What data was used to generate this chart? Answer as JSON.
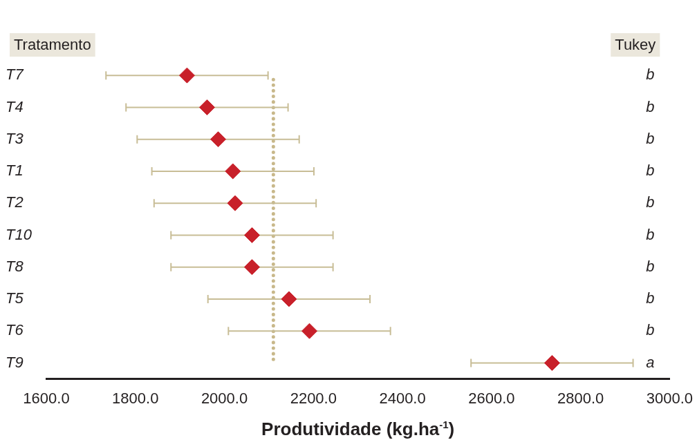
{
  "chart_data": {
    "type": "scatter",
    "orientation": "horizontal",
    "ylabel": "Tratamento",
    "y2label": "Tukey",
    "xlabel": "Produtividade (kg.ha$^{-1}$)",
    "categories": [
      "T7",
      "T4",
      "T3",
      "T1",
      "T2",
      "T10",
      "T8",
      "T5",
      "T6",
      "T9"
    ],
    "series": [
      {
        "color": "#c8202a",
        "values": [
          1916,
          1961,
          1986,
          2019,
          2024,
          2062,
          2062,
          2145,
          2191,
          2736
        ],
        "errors": [
          182,
          182,
          182,
          182,
          182,
          182,
          182,
          182,
          182,
          182
        ]
      }
    ],
    "marker": "diamond",
    "xlim": [
      1600,
      3000
    ],
    "xticks": [
      {
        "value": 1600,
        "label": "1600.0"
      },
      {
        "value": 1800,
        "label": "1800.0"
      },
      {
        "value": 2000,
        "label": "2000.0"
      },
      {
        "value": 2200,
        "label": "2200.0"
      },
      {
        "value": 2400,
        "label": "2400.0"
      },
      {
        "value": 2600,
        "label": "2600.0"
      },
      {
        "value": 2800,
        "label": "2800.0"
      },
      {
        "value": 3000,
        "label": "3000.0"
      }
    ],
    "ref_lines": [
      {
        "axis": "x",
        "value": 2110,
        "color": "#c8b88a",
        "line_style": "dotted"
      }
    ],
    "annotations": [
      "b",
      "b",
      "b",
      "b",
      "b",
      "b",
      "b",
      "b",
      "b",
      "a"
    ],
    "grid": false,
    "legend": false
  }
}
